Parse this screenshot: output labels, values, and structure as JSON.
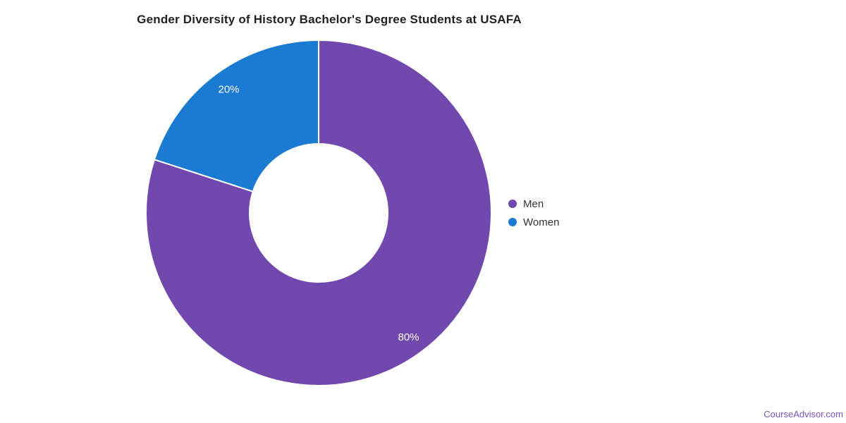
{
  "title": {
    "text": "Gender Diversity of History Bachelor's Degree Students at USAFA",
    "color": "#212121"
  },
  "watermark": {
    "text": "CourseAdvisor.com",
    "color": "#7a52c6"
  },
  "legend": {
    "position": "right-middle",
    "text_color": "#333333"
  },
  "chart_data": {
    "type": "pie",
    "subtype": "donut",
    "title": "Gender Diversity of History Bachelor's Degree Students at USAFA",
    "categories": [
      "Men",
      "Women"
    ],
    "values": [
      80,
      20
    ],
    "unit": "%",
    "series": [
      {
        "name": "Men",
        "value": 80,
        "label": "80%",
        "color": "#7148ad"
      },
      {
        "name": "Women",
        "value": 20,
        "label": "20%",
        "color": "#1b7ad1"
      }
    ],
    "start_angle_deg": 0,
    "direction": "clockwise",
    "donut_hole_ratio": 0.4,
    "legend_position": "right-middle",
    "slice_label_color": "#ffffff",
    "separator_color": "#ffffff",
    "background_color": "#ffffff"
  }
}
